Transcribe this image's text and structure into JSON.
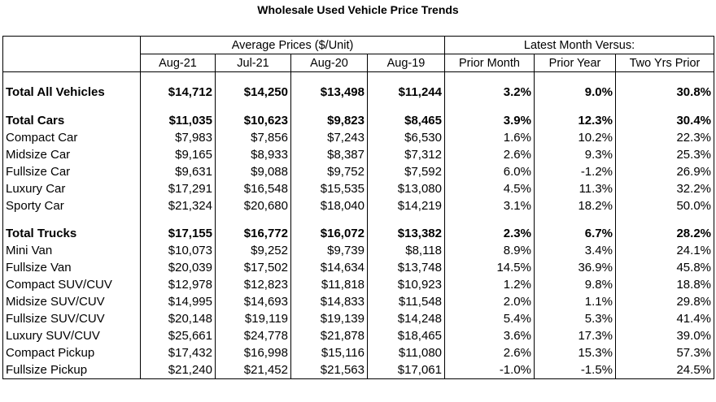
{
  "title": "Wholesale Used Vehicle Price Trends",
  "headers": {
    "avg_group": "Average Prices ($/Unit)",
    "latest_group": "Latest Month Versus:",
    "cols": [
      "Aug-21",
      "Jul-21",
      "Aug-20",
      "Aug-19",
      "Prior Month",
      "Prior Year",
      "Two Yrs Prior"
    ]
  },
  "total_all": {
    "label": "Total All Vehicles",
    "values": [
      "$14,712",
      "$14,250",
      "$13,498",
      "$11,244",
      "3.2%",
      "9.0%",
      "30.8%"
    ]
  },
  "cars": [
    {
      "label": "Total Cars",
      "values": [
        "$11,035",
        "$10,623",
        "$9,823",
        "$8,465",
        "3.9%",
        "12.3%",
        "30.4%"
      ]
    },
    {
      "label": "Compact Car",
      "values": [
        "$7,983",
        "$7,856",
        "$7,243",
        "$6,530",
        "1.6%",
        "10.2%",
        "22.3%"
      ]
    },
    {
      "label": "Midsize Car",
      "values": [
        "$9,165",
        "$8,933",
        "$8,387",
        "$7,312",
        "2.6%",
        "9.3%",
        "25.3%"
      ]
    },
    {
      "label": "Fullsize Car",
      "values": [
        "$9,631",
        "$9,088",
        "$9,752",
        "$7,592",
        "6.0%",
        "-1.2%",
        "26.9%"
      ]
    },
    {
      "label": "Luxury Car",
      "values": [
        "$17,291",
        "$16,548",
        "$15,535",
        "$13,080",
        "4.5%",
        "11.3%",
        "32.2%"
      ]
    },
    {
      "label": "Sporty Car",
      "values": [
        "$21,324",
        "$20,680",
        "$18,040",
        "$14,219",
        "3.1%",
        "18.2%",
        "50.0%"
      ]
    }
  ],
  "trucks": [
    {
      "label": "Total Trucks",
      "values": [
        "$17,155",
        "$16,772",
        "$16,072",
        "$13,382",
        "2.3%",
        "6.7%",
        "28.2%"
      ]
    },
    {
      "label": "Mini Van",
      "values": [
        "$10,073",
        "$9,252",
        "$9,739",
        "$8,118",
        "8.9%",
        "3.4%",
        "24.1%"
      ]
    },
    {
      "label": "Fullsize Van",
      "values": [
        "$20,039",
        "$17,502",
        "$14,634",
        "$13,748",
        "14.5%",
        "36.9%",
        "45.8%"
      ]
    },
    {
      "label": "Compact SUV/CUV",
      "values": [
        "$12,978",
        "$12,823",
        "$11,818",
        "$10,923",
        "1.2%",
        "9.8%",
        "18.8%"
      ]
    },
    {
      "label": "Midsize SUV/CUV",
      "values": [
        "$14,995",
        "$14,693",
        "$14,833",
        "$11,548",
        "2.0%",
        "1.1%",
        "29.8%"
      ]
    },
    {
      "label": "Fullsize SUV/CUV",
      "values": [
        "$20,148",
        "$19,119",
        "$19,139",
        "$14,248",
        "5.4%",
        "5.3%",
        "41.4%"
      ]
    },
    {
      "label": "Luxury SUV/CUV",
      "values": [
        "$25,661",
        "$24,778",
        "$21,878",
        "$18,465",
        "3.6%",
        "17.3%",
        "39.0%"
      ]
    },
    {
      "label": "Compact Pickup",
      "values": [
        "$17,432",
        "$16,998",
        "$15,116",
        "$11,080",
        "2.6%",
        "15.3%",
        "57.3%"
      ]
    },
    {
      "label": "Fullsize Pickup",
      "values": [
        "$21,240",
        "$21,452",
        "$21,563",
        "$17,061",
        "-1.0%",
        "-1.5%",
        "24.5%"
      ]
    }
  ]
}
